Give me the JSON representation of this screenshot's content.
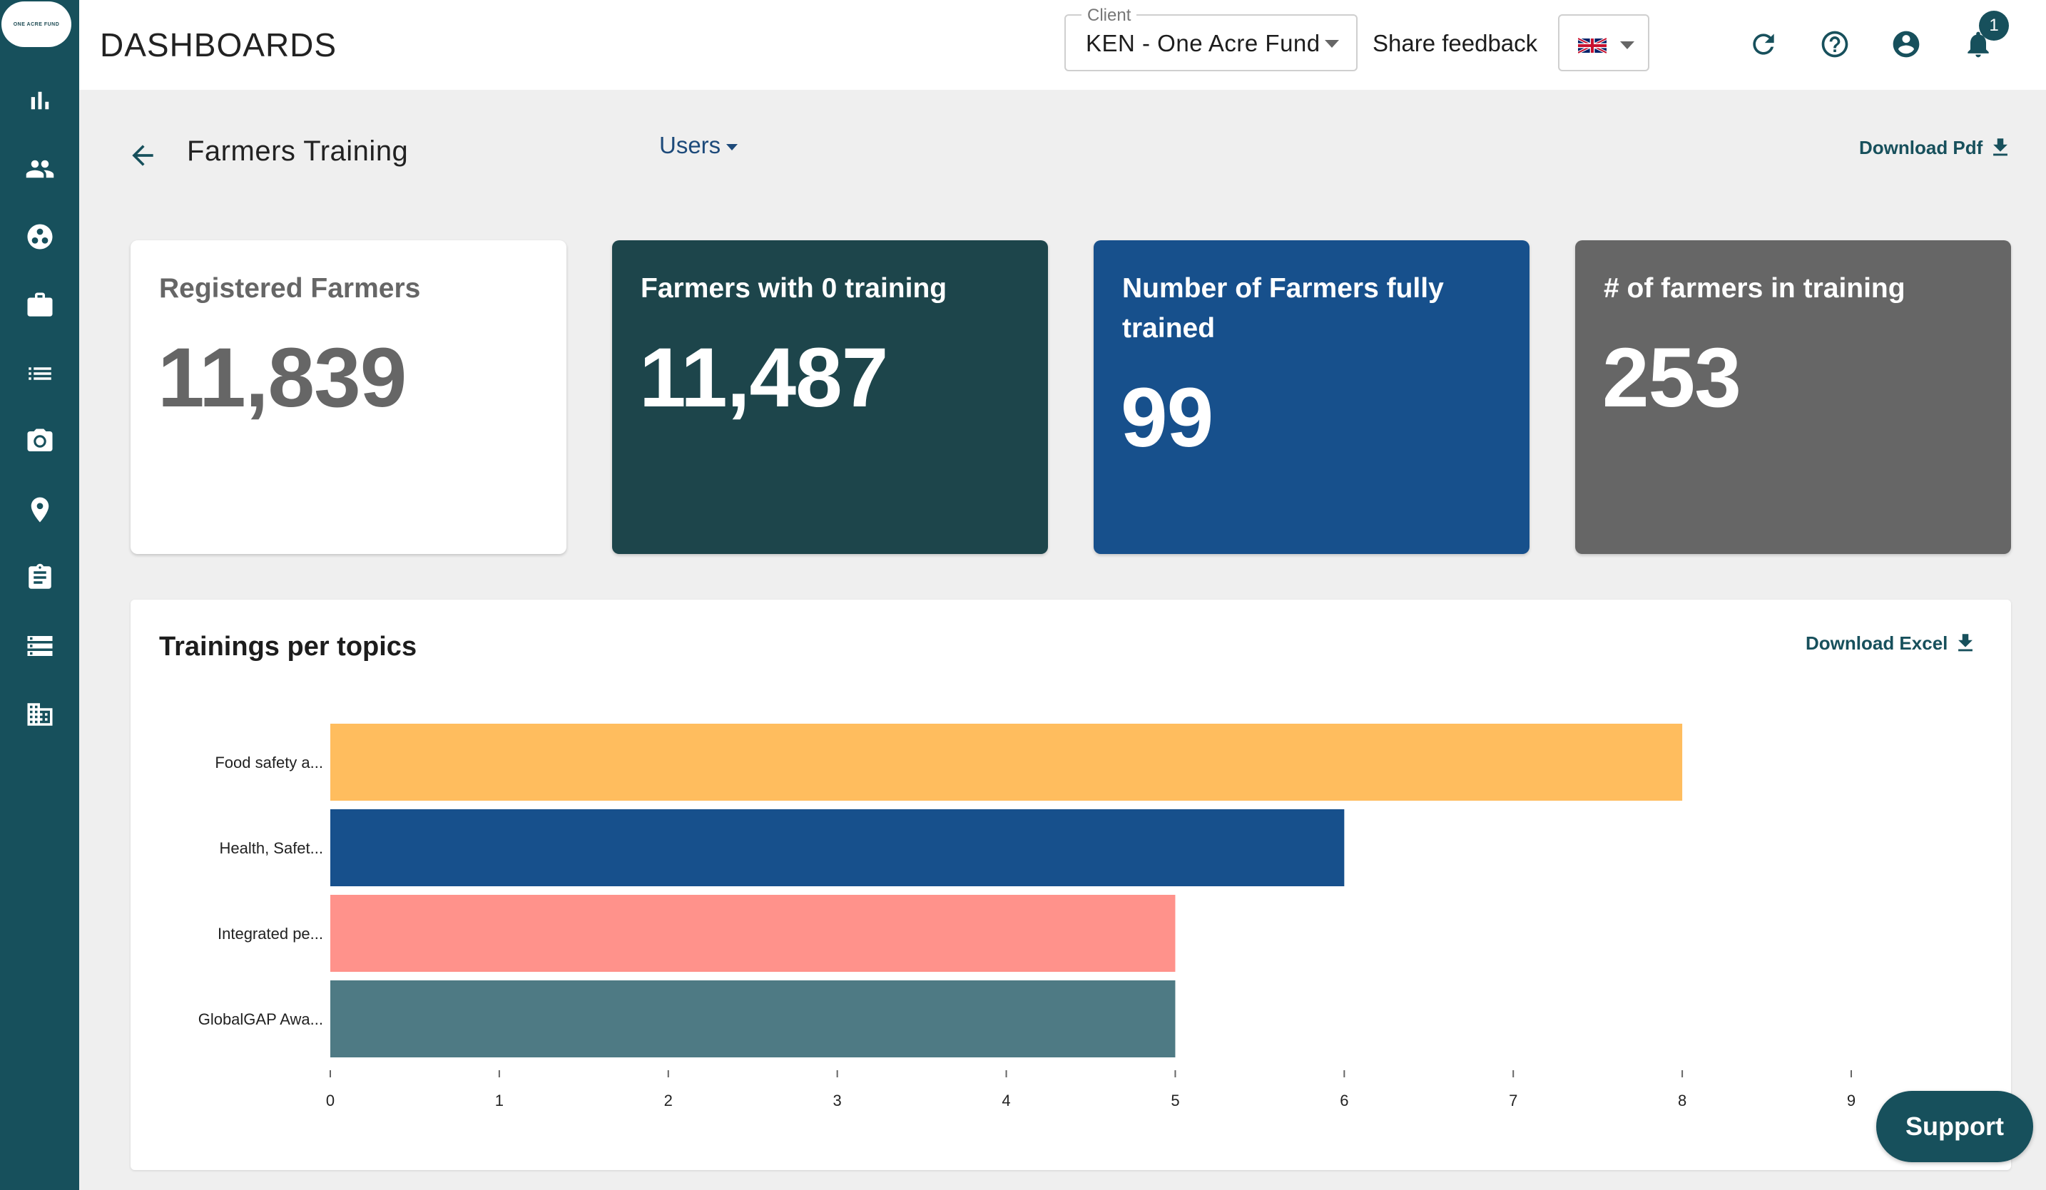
{
  "app": {
    "title": "DASHBOARDS",
    "logo_text": "ONE ACRE FUND"
  },
  "sidebar": {
    "items": [
      {
        "icon": "bar-chart-icon"
      },
      {
        "icon": "people-icon"
      },
      {
        "icon": "palette-icon"
      },
      {
        "icon": "briefcase-icon"
      },
      {
        "icon": "list-icon"
      },
      {
        "icon": "camera-icon"
      },
      {
        "icon": "location-icon"
      },
      {
        "icon": "clipboard-icon"
      },
      {
        "icon": "storage-icon"
      },
      {
        "icon": "building-icon"
      }
    ]
  },
  "header": {
    "client_label": "Client",
    "client_value": "KEN - One Acre Fund",
    "share_feedback": "Share feedback",
    "language": "en-GB",
    "notification_count": "1"
  },
  "page": {
    "title": "Farmers Training",
    "view_selector": "Users",
    "download_pdf": "Download Pdf"
  },
  "cards": [
    {
      "title": "Registered Farmers",
      "value": "11,839",
      "bg": "#ffffff",
      "fg": "#666666"
    },
    {
      "title": "Farmers with 0 training",
      "value": "11,487",
      "bg": "#1d454b",
      "fg": "#ffffff"
    },
    {
      "title": "Number of Farmers fully trained",
      "value": "99",
      "bg": "#17508c",
      "fg": "#ffffff"
    },
    {
      "title": "# of farmers in training",
      "value": "253",
      "bg": "#666666",
      "fg": "#ffffff"
    }
  ],
  "panel": {
    "title": "Trainings per topics",
    "download_excel": "Download Excel"
  },
  "chart_data": {
    "type": "bar",
    "orientation": "horizontal",
    "categories": [
      "Food safety a...",
      "Health, Safet...",
      "Integrated pe...",
      "GlobalGAP Awa..."
    ],
    "values": [
      8,
      6,
      5,
      5
    ],
    "colors": [
      "#ffbd5e",
      "#17508c",
      "#ff928b",
      "#4e7a84"
    ],
    "xlim": [
      0,
      9
    ],
    "xticks": [
      "0",
      "1",
      "2",
      "3",
      "4",
      "5",
      "6",
      "7",
      "8",
      "9"
    ],
    "grid": false,
    "legend": "none"
  },
  "support": {
    "label": "Support"
  }
}
